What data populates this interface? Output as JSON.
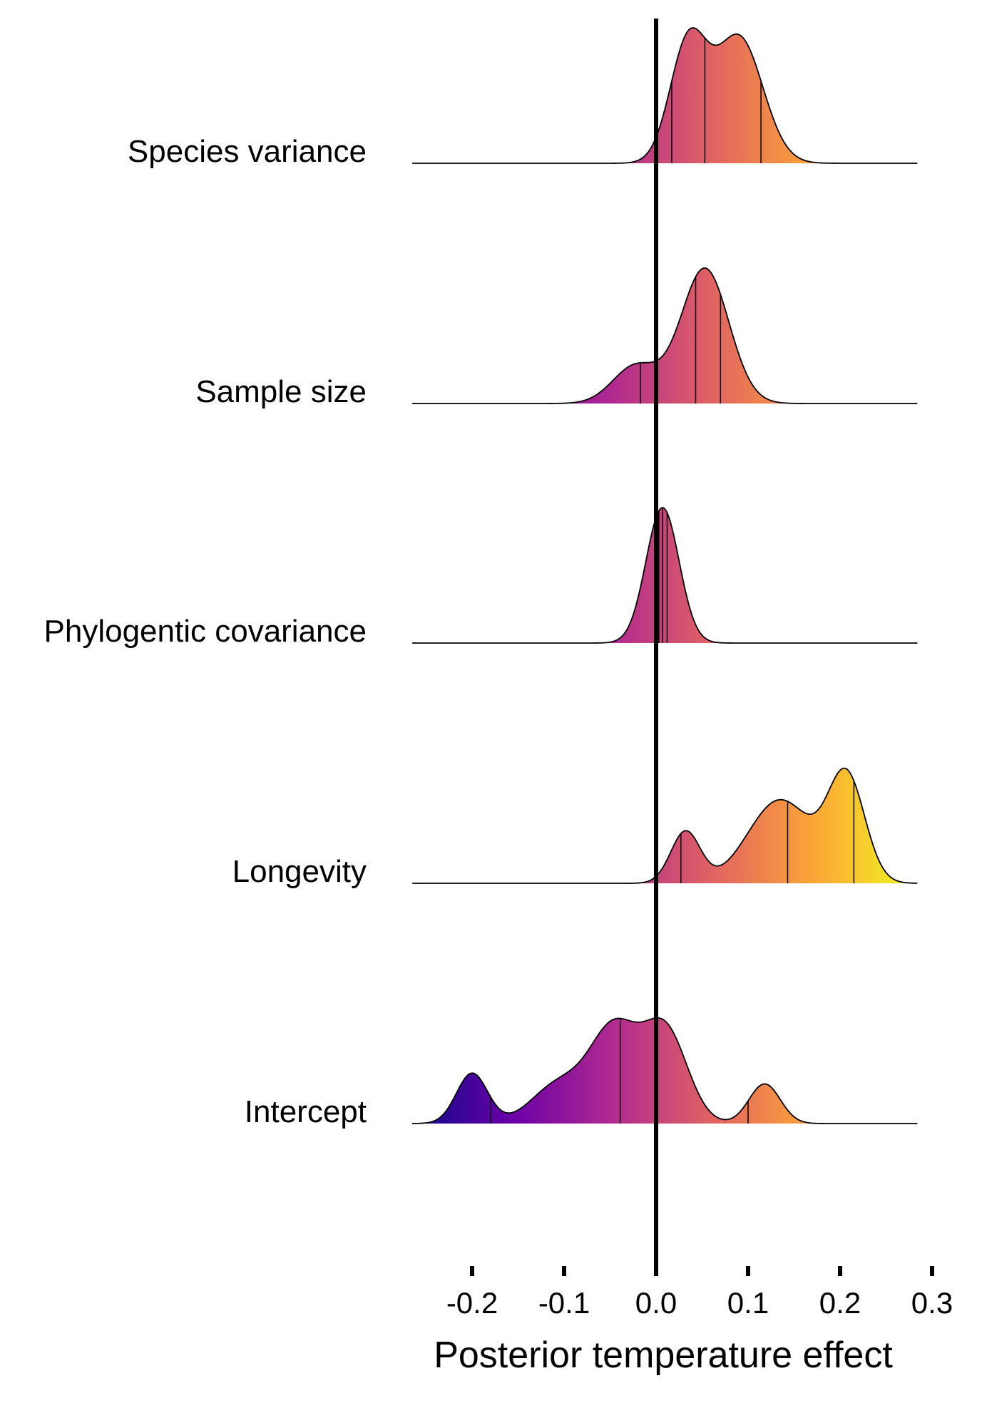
{
  "chart_data": {
    "type": "ridgeline",
    "xlabel": "Posterior temperature effect",
    "xlim": [
      -0.265,
      0.3
    ],
    "x_ticks": [
      -0.2,
      -0.1,
      0.0,
      0.1,
      0.2,
      0.3
    ],
    "x_tick_labels": [
      "-0.2",
      "-0.1",
      "0.0",
      "0.1",
      "0.2",
      "0.3"
    ],
    "reference_line_x": 0.0,
    "colormap": [
      "#0d0887",
      "#6a00a8",
      "#b12a90",
      "#e16462",
      "#fca636",
      "#f0f921"
    ],
    "quantile_lines": "25th, 50th, 75th percentiles",
    "series": [
      {
        "name": "Species variance",
        "components": [
          {
            "mean": 0.035,
            "sd": 0.02,
            "weight": 0.9
          },
          {
            "mean": 0.09,
            "sd": 0.026,
            "weight": 0.95
          }
        ],
        "peak_density_scale": 1.0,
        "quantiles": [
          0.017,
          0.053,
          0.114
        ]
      },
      {
        "name": "Sample size",
        "components": [
          {
            "mean": 0.053,
            "sd": 0.026,
            "weight": 1.0
          },
          {
            "mean": -0.022,
            "sd": 0.025,
            "weight": 0.28
          }
        ],
        "peak_density_scale": 1.0,
        "quantiles": [
          -0.017,
          0.043,
          0.07
        ]
      },
      {
        "name": "Phylogentic covariance",
        "components": [
          {
            "mean": 0.007,
            "sd": 0.018,
            "weight": 1.0
          }
        ],
        "peak_density_scale": 1.0,
        "quantiles": [
          0.003,
          0.007,
          0.012
        ]
      },
      {
        "name": "Longevity",
        "components": [
          {
            "mean": 0.032,
            "sd": 0.016,
            "weight": 0.42
          },
          {
            "mean": 0.135,
            "sd": 0.035,
            "weight": 0.68
          },
          {
            "mean": 0.207,
            "sd": 0.02,
            "weight": 0.85
          }
        ],
        "peak_density_scale": 0.85,
        "quantiles": [
          0.027,
          0.143,
          0.215
        ]
      },
      {
        "name": "Intercept",
        "components": [
          {
            "mean": -0.2,
            "sd": 0.017,
            "weight": 0.38
          },
          {
            "mean": -0.105,
            "sd": 0.03,
            "weight": 0.3
          },
          {
            "mean": -0.045,
            "sd": 0.026,
            "weight": 0.7
          },
          {
            "mean": 0.01,
            "sd": 0.024,
            "weight": 0.7
          },
          {
            "mean": 0.118,
            "sd": 0.017,
            "weight": 0.3
          }
        ],
        "peak_density_scale": 0.78,
        "quantiles": [
          -0.18,
          -0.039,
          0.1
        ]
      }
    ]
  }
}
